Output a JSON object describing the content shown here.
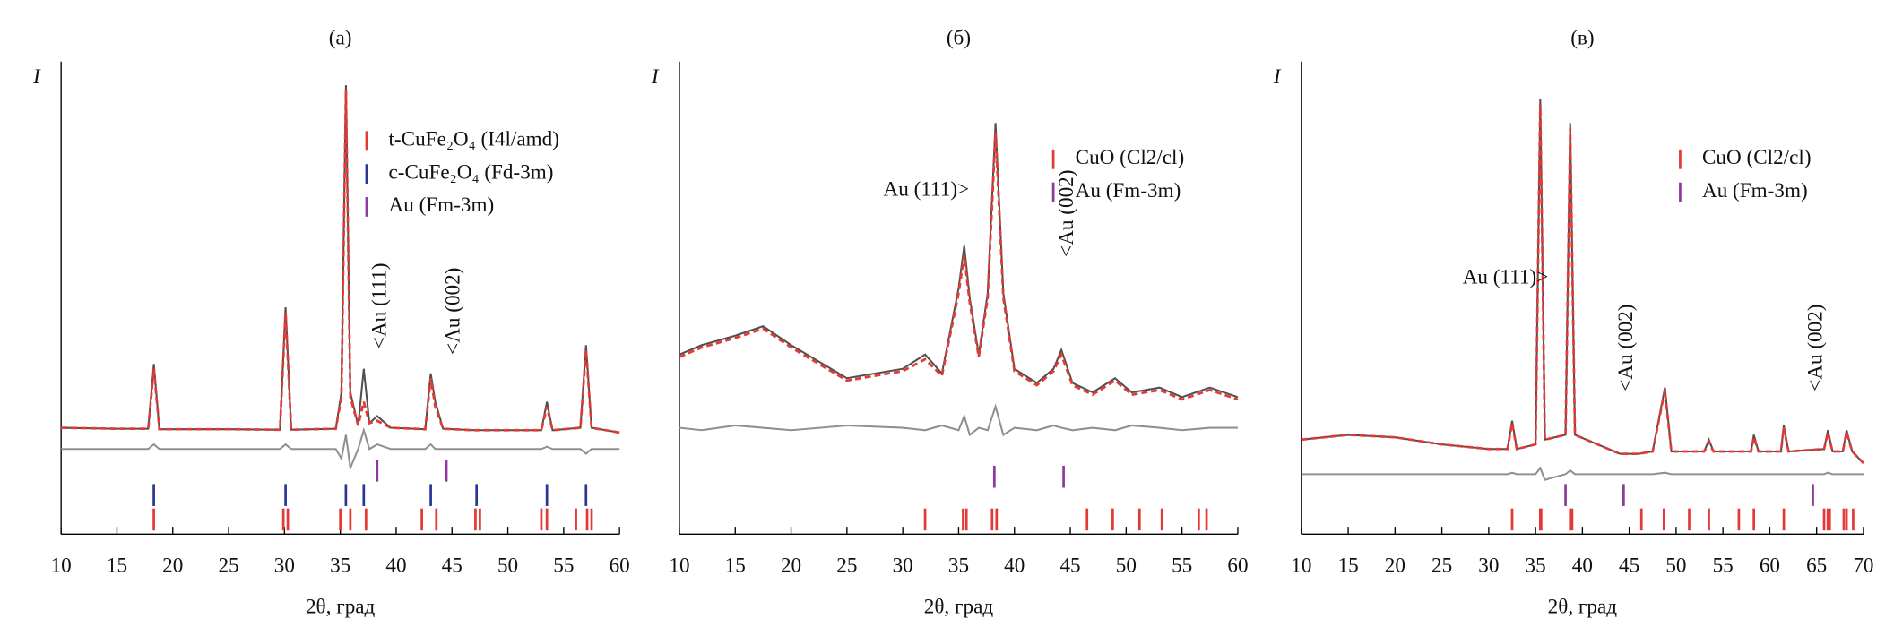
{
  "chart_data": [
    {
      "type": "line",
      "title": "(а)",
      "ylabel": "I",
      "xlabel": "2θ, град",
      "xlim": [
        10,
        60
      ],
      "xticks": [
        10,
        15,
        20,
        25,
        30,
        35,
        40,
        45,
        50,
        55,
        60
      ],
      "ylim": [
        0,
        100
      ],
      "x": [
        10,
        15,
        17.8,
        18.3,
        18.8,
        25,
        29.6,
        30.1,
        30.6,
        34.6,
        35.1,
        35.5,
        35.9,
        36.6,
        37.1,
        37.6,
        38.3,
        39.5,
        42.6,
        43.1,
        43.5,
        44.2,
        47,
        53,
        53.5,
        54,
        56.5,
        57,
        57.5,
        60
      ],
      "series": [
        {
          "color": "#505050",
          "values": [
            22.5,
            22.3,
            22.3,
            36,
            22.2,
            22.2,
            22.1,
            48,
            22.1,
            22.3,
            30,
            95,
            30,
            23,
            35,
            23.5,
            25,
            22.5,
            22.2,
            34,
            28,
            22.3,
            22,
            22,
            28,
            22,
            22.5,
            40,
            22.5,
            21.5
          ]
        },
        {
          "color": "#e53935",
          "dashed": true,
          "values": [
            22.5,
            22.3,
            22.3,
            35,
            22.2,
            22.2,
            22.1,
            47,
            22.1,
            22.3,
            29,
            94,
            29,
            23,
            28,
            23.5,
            24,
            22.5,
            22.2,
            33,
            27,
            22.3,
            22,
            22,
            27,
            22,
            22.5,
            39,
            22.5,
            21.5
          ]
        },
        {
          "color": "#909090",
          "values": [
            18,
            18,
            18,
            19,
            18,
            18,
            18,
            19,
            18,
            18,
            16,
            21,
            14,
            18,
            22,
            18,
            19,
            18,
            18,
            19,
            18,
            18,
            18,
            18,
            18.5,
            18,
            18,
            17,
            18,
            18
          ]
        }
      ],
      "reflections": [
        {
          "name": "t-CuFe₂O₄ (I4l/amd)",
          "color": "#e53935",
          "positions": [
            18.3,
            29.9,
            30.3,
            35.0,
            35.9,
            37.3,
            42.3,
            43.6,
            47.1,
            47.5,
            53.0,
            53.5,
            56.1,
            57.1,
            57.5
          ]
        },
        {
          "name": "c-CuFe₂O₄ (Fd-3m)",
          "color": "#283593",
          "positions": [
            18.3,
            30.1,
            35.5,
            37.1,
            43.1,
            47.2,
            53.5,
            57.0
          ]
        },
        {
          "name": "Au (Fm-3m)",
          "color": "#8e3a9d",
          "positions": [
            38.3,
            44.5
          ]
        }
      ],
      "annotations": [
        "<Au (111)",
        "<Au (002)"
      ]
    },
    {
      "type": "line",
      "title": "(б)",
      "ylabel": "I",
      "xlabel": "2θ, град",
      "xlim": [
        10,
        60
      ],
      "xticks": [
        10,
        15,
        20,
        25,
        30,
        35,
        40,
        45,
        50,
        55,
        60
      ],
      "ylim": [
        0,
        100
      ],
      "x": [
        10,
        12,
        15,
        17.5,
        20,
        25,
        30,
        32,
        33.5,
        35,
        35.5,
        36,
        36.8,
        37.6,
        38.3,
        39,
        40,
        42,
        43.5,
        44.2,
        45.2,
        47,
        49,
        50.5,
        53,
        55,
        57.5,
        60
      ],
      "series": [
        {
          "color": "#505050",
          "values": [
            38,
            40,
            42,
            44,
            40,
            33,
            35,
            38,
            34,
            52,
            61,
            50,
            38,
            51,
            87,
            51,
            35,
            32,
            35,
            39,
            32,
            30,
            33,
            30,
            31,
            29,
            31,
            29
          ]
        },
        {
          "color": "#e53935",
          "dashed": true,
          "values": [
            37.5,
            39.5,
            41.5,
            43.5,
            39.5,
            32.5,
            34.5,
            37,
            33.5,
            51,
            59,
            49,
            37.5,
            50,
            85,
            50,
            34.5,
            31.5,
            34.5,
            38,
            31.5,
            29.5,
            32.5,
            29.5,
            30.5,
            28.5,
            30.5,
            28.5
          ]
        },
        {
          "color": "#909090",
          "values": [
            22.5,
            22,
            23,
            22.5,
            22,
            23,
            22.5,
            22,
            23,
            22,
            25,
            21,
            22.5,
            22,
            27,
            21,
            22.5,
            22,
            23,
            22.5,
            22,
            22.5,
            22,
            23,
            22.5,
            22,
            22.5,
            22.5
          ]
        }
      ],
      "reflections": [
        {
          "name": "CuO (Cl2/cl)",
          "color": "#e53935",
          "positions": [
            32.0,
            35.4,
            35.7,
            38.0,
            38.4,
            46.5,
            48.8,
            51.2,
            53.2,
            56.5,
            57.2
          ]
        },
        {
          "name": "Au (Fm-3m)",
          "color": "#8e3a9d",
          "positions": [
            38.2,
            44.4
          ]
        }
      ],
      "annotations": [
        "Au (111)>",
        "<Au (002)"
      ]
    },
    {
      "type": "line",
      "title": "(в)",
      "ylabel": "I",
      "xlabel": "2θ, град",
      "xlim": [
        10,
        70
      ],
      "xticks": [
        10,
        15,
        20,
        25,
        30,
        35,
        40,
        45,
        50,
        55,
        60,
        65,
        70
      ],
      "ylim": [
        0,
        100
      ],
      "x": [
        10,
        15,
        20,
        25,
        30,
        32,
        32.5,
        33,
        35,
        35.5,
        36,
        38.2,
        38.7,
        39.2,
        44,
        46,
        47.5,
        48.8,
        49.5,
        53,
        53.5,
        54,
        58,
        58.3,
        58.8,
        61.2,
        61.5,
        62,
        65.8,
        66.2,
        66.7,
        67.8,
        68.2,
        68.8,
        70
      ],
      "series": [
        {
          "color": "#505050",
          "values": [
            20,
            21,
            20.5,
            19,
            18,
            18,
            24,
            18,
            19,
            92,
            20,
            21,
            87,
            21,
            17,
            17,
            17.5,
            31,
            17.5,
            17.5,
            20,
            17.5,
            17.5,
            21,
            17.5,
            17.5,
            23,
            17.5,
            18,
            22,
            17.5,
            17.5,
            22,
            17.5,
            15
          ]
        },
        {
          "color": "#e53935",
          "dashed": true,
          "values": [
            20,
            21,
            20.5,
            19,
            18,
            18,
            23.5,
            18,
            19,
            91,
            20,
            21,
            86,
            21,
            17,
            17,
            17.5,
            30.5,
            17.5,
            17.5,
            19.5,
            17.5,
            17.5,
            20.5,
            17.5,
            17.5,
            22.5,
            17.5,
            18,
            21.5,
            17.5,
            17.5,
            21.5,
            17.5,
            15
          ]
        },
        {
          "color": "#909090",
          "values": [
            12.7,
            12.7,
            12.7,
            12.7,
            12.7,
            12.7,
            13,
            12.7,
            12.7,
            14,
            11.5,
            12.7,
            13.5,
            12.7,
            12.7,
            12.7,
            12.7,
            13,
            12.7,
            12.7,
            12.7,
            12.7,
            12.7,
            12.7,
            12.7,
            12.7,
            12.7,
            12.7,
            12.7,
            13,
            12.7,
            12.7,
            12.7,
            12.7,
            12.7
          ]
        }
      ],
      "reflections": [
        {
          "name": "CuO (Cl2/cl)",
          "color": "#e53935",
          "positions": [
            32.5,
            35.5,
            35.6,
            38.7,
            38.9,
            46.3,
            48.7,
            51.4,
            53.5,
            56.7,
            58.3,
            61.5,
            65.8,
            66.2,
            66.4,
            67.9,
            68.2,
            68.9
          ]
        },
        {
          "name": "Au (Fm-3m)",
          "color": "#8e3a9d",
          "positions": [
            38.2,
            44.4,
            64.6
          ]
        }
      ],
      "annotations": [
        "Au (111)>",
        "<Au (002)",
        "<Au (002)"
      ]
    }
  ]
}
